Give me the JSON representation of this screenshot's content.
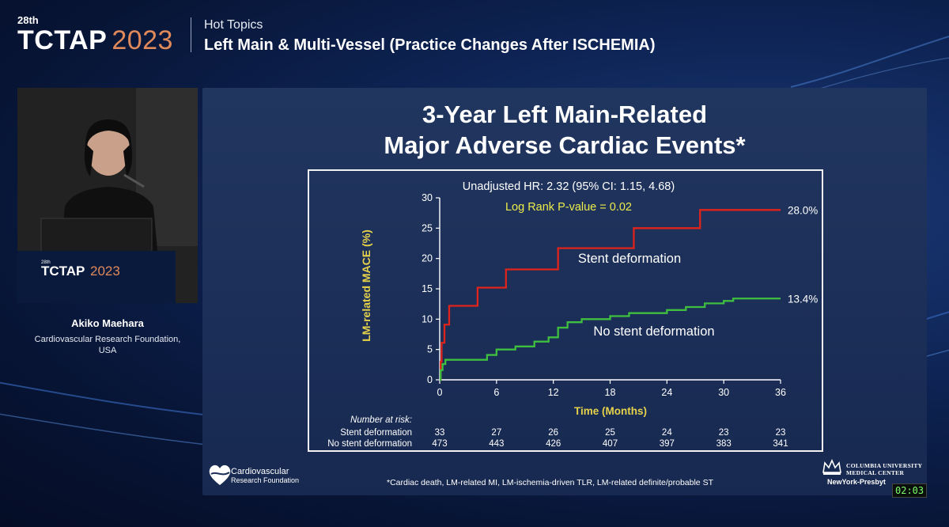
{
  "header": {
    "edition": "28th",
    "brand": "TCTAP",
    "year": "2023",
    "topic": "Hot Topics",
    "session": "Left Main & Multi-Vessel (Practice Changes After ISCHEMIA)"
  },
  "speaker": {
    "podium_edition": "28th",
    "podium_brand": "TCTAP",
    "podium_year": "2023",
    "name": "Akiko Maehara",
    "affiliation_line1": "Cardiovascular Research Foundation,",
    "affiliation_line2": "USA"
  },
  "slide": {
    "title_line1": "3-Year Left Main-Related",
    "title_line2": "Major Adverse Cardiac Events*",
    "footnote": "*Cardiac death, LM-related MI, LM-ischemia-driven TLR, LM-related definite/probable ST",
    "crf_line1": "Cardiovascular",
    "crf_line2": "Research Foundation",
    "columbia_line1": "COLUMBIA UNIVERSITY",
    "columbia_line2": "MEDICAL CENTER",
    "nyp": "NewYork-Presbyt"
  },
  "timer": "02:03",
  "chart_data": {
    "type": "line",
    "title": "",
    "xlabel": "Time (Months)",
    "ylabel": "LM-related MACE (%)",
    "xlim": [
      0,
      36
    ],
    "ylim": [
      0,
      30
    ],
    "xticks": [
      0,
      6,
      12,
      18,
      24,
      30,
      36
    ],
    "yticks": [
      0,
      5,
      10,
      15,
      20,
      25,
      30
    ],
    "grid": false,
    "annotations": {
      "hr": "Unadjusted HR: 2.32 (95% CI: 1.15, 4.68)",
      "pvalue": "Log Rank P-value = 0.02"
    },
    "series": [
      {
        "name": "Stent deformation",
        "color": "#e0231b",
        "end_label": "28.0%",
        "points": [
          [
            0,
            0
          ],
          [
            0.1,
            3
          ],
          [
            0.2,
            6.1
          ],
          [
            0.5,
            9.1
          ],
          [
            1,
            12.2
          ],
          [
            4,
            15.2
          ],
          [
            7,
            18.2
          ],
          [
            12.5,
            21.7
          ],
          [
            20.5,
            25
          ],
          [
            27.5,
            28
          ],
          [
            36,
            28
          ]
        ]
      },
      {
        "name": "No stent deformation",
        "color": "#3fbf3f",
        "end_label": "13.4%",
        "points": [
          [
            0,
            0
          ],
          [
            0.1,
            1.6
          ],
          [
            0.3,
            2.6
          ],
          [
            0.6,
            3.3
          ],
          [
            3.5,
            3.3
          ],
          [
            5,
            4.1
          ],
          [
            6,
            5
          ],
          [
            8,
            5.5
          ],
          [
            10,
            6.3
          ],
          [
            11.5,
            7
          ],
          [
            12.5,
            8.6
          ],
          [
            13.5,
            9.5
          ],
          [
            15,
            10
          ],
          [
            18,
            10.5
          ],
          [
            20,
            11
          ],
          [
            24,
            11.5
          ],
          [
            26,
            12
          ],
          [
            28,
            12.6
          ],
          [
            30,
            13
          ],
          [
            31,
            13.4
          ],
          [
            36,
            13.4
          ]
        ]
      }
    ],
    "risk_table": {
      "header": "Number at risk:",
      "rows": [
        {
          "label": "Stent deformation",
          "values": [
            33,
            27,
            26,
            25,
            24,
            23,
            23
          ]
        },
        {
          "label": "No stent deformation",
          "values": [
            473,
            443,
            426,
            407,
            397,
            383,
            341
          ]
        }
      ]
    }
  }
}
